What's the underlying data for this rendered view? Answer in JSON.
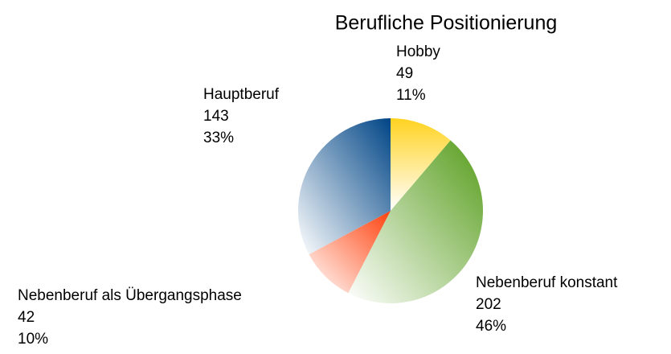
{
  "chart_data": {
    "type": "pie",
    "title": "Berufliche Positionierung",
    "categories": [
      "Hobby",
      "Nebenberuf konstant",
      "Nebenberuf als Übergangsphase",
      "Hauptberuf"
    ],
    "values": [
      49,
      202,
      42,
      143
    ],
    "percent_labels": [
      "11%",
      "46%",
      "10%",
      "33%"
    ],
    "colors": [
      "#ffd320",
      "#579d1c",
      "#ff420e",
      "#004586"
    ]
  }
}
